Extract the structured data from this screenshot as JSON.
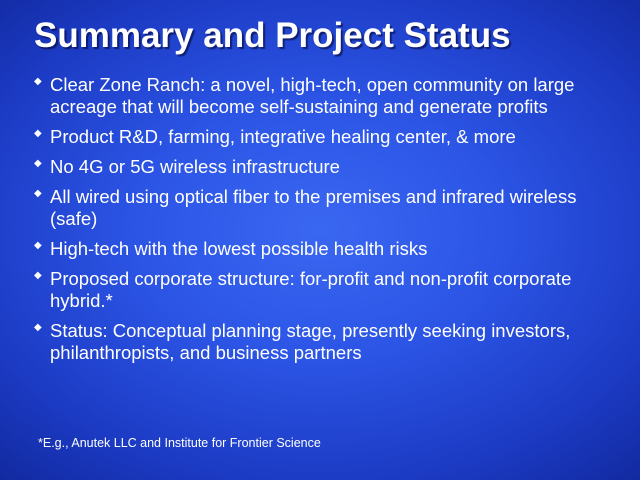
{
  "slide": {
    "title": "Summary and Project Status",
    "bullets": [
      "Clear Zone Ranch:  a novel, high-tech, open community on large acreage that will become self-sustaining and generate profits",
      "Product R&D, farming, integrative healing center, & more",
      "No 4G or 5G wireless infrastructure",
      "All wired using optical fiber to the premises and infrared wireless (safe)",
      "High-tech with the lowest possible health risks",
      "Proposed corporate structure:  for-profit and non-profit corporate hybrid.*",
      "Status:  Conceptual planning stage, presently seeking investors, philanthropists, and business partners"
    ],
    "bullet_glyph": "◆",
    "footnote": "*E.g., Anutek LLC and Institute for Frontier Science",
    "colors": {
      "background_center": "#3a67f2",
      "background_edge": "#0f2596",
      "text": "#ffffff"
    }
  }
}
